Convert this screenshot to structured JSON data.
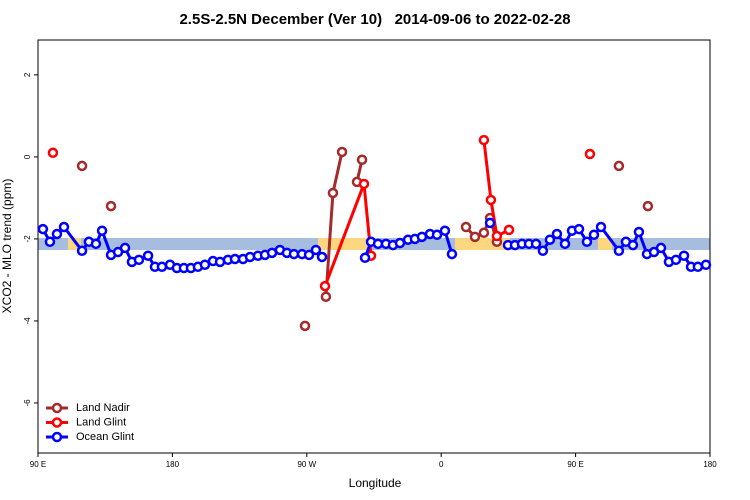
{
  "chart_data": {
    "type": "line",
    "title": "2.5S-2.5N December (Ver 10)   2014-09-06 to 2022-02-28",
    "xlabel": "Longitude",
    "ylabel": "XCO2 - MLO trend (ppm)",
    "xlim": [
      90,
      540
    ],
    "ylim": [
      -7.22,
      2.85
    ],
    "xticks": [
      {
        "value": 90,
        "label": "90 E"
      },
      180,
      {
        "value": 270,
        "label": "90 W"
      },
      {
        "value": 360,
        "label": "0"
      },
      {
        "value": 450,
        "label": "90 E"
      },
      {
        "value": 540,
        "label": "180"
      }
    ],
    "yticks": [
      2,
      0,
      -2,
      -4,
      -6
    ],
    "legend": "bottom-left",
    "series": [
      {
        "name": "Land Nadir",
        "color": "#a52a2a",
        "x": [
          119.5,
          null,
          138.9,
          null,
          268.8,
          null,
          282.8,
          287.5,
          293.6,
          null,
          303.6,
          307.0,
          null,
          376.6,
          382.6,
          388.6,
          392.7,
          397.3,
          null,
          479.0,
          null,
          498.4
        ],
        "values": [
          -0.22,
          null,
          -1.2,
          null,
          -4.12,
          null,
          -3.41,
          -0.88,
          0.12,
          null,
          -0.61,
          -0.07,
          null,
          -1.71,
          -1.95,
          -1.85,
          -1.49,
          -2.07,
          null,
          -0.22,
          null,
          -1.2
        ]
      },
      {
        "name": "Land Glint",
        "color": "#ff0000",
        "x": [
          100.0,
          null,
          282.2,
          308.3,
          313.0,
          null,
          388.6,
          393.3,
          397.3,
          405.4,
          null,
          459.6
        ],
        "values": [
          0.1,
          null,
          -3.15,
          -0.66,
          -2.41,
          null,
          0.41,
          -1.05,
          -1.93,
          -1.78,
          null,
          0.07
        ]
      },
      {
        "name": "Ocean Glint",
        "color": "#0000ff",
        "x": [
          93.3,
          98.0,
          102.7,
          107.4,
          119.5,
          124.1,
          128.8,
          132.9,
          138.9,
          143.6,
          148.3,
          152.9,
          157.6,
          163.7,
          168.3,
          173.0,
          178.4,
          183.0,
          187.7,
          192.4,
          197.1,
          201.8,
          207.2,
          211.9,
          217.2,
          221.9,
          227.3,
          232.0,
          237.3,
          242.0,
          246.7,
          252.0,
          256.7,
          261.4,
          266.8,
          271.5,
          276.1,
          280.2,
          null,
          309.0,
          313.0,
          317.7,
          323.0,
          327.7,
          332.4,
          337.8,
          342.4,
          347.1,
          352.5,
          357.2,
          362.5,
          367.2,
          null,
          392.7,
          null,
          404.7,
          409.4,
          414.1,
          418.8,
          423.5,
          428.1,
          432.8,
          437.5,
          442.9,
          447.6,
          452.3,
          457.6,
          462.3,
          467.0,
          479.0,
          483.7,
          488.4,
          492.4,
          497.8,
          502.5,
          507.2,
          512.5,
          517.2,
          522.6,
          527.3,
          531.9,
          537.3
        ],
        "values": [
          -1.76,
          -2.07,
          -1.88,
          -1.71,
          -2.29,
          -2.07,
          -2.12,
          -1.8,
          -2.39,
          -2.32,
          -2.22,
          -2.56,
          -2.51,
          -2.41,
          -2.68,
          -2.68,
          -2.63,
          -2.71,
          -2.71,
          -2.71,
          -2.68,
          -2.63,
          -2.54,
          -2.56,
          -2.51,
          -2.49,
          -2.49,
          -2.44,
          -2.41,
          -2.39,
          -2.34,
          -2.27,
          -2.34,
          -2.37,
          -2.37,
          -2.39,
          -2.27,
          -2.44,
          null,
          -2.46,
          -2.07,
          -2.12,
          -2.12,
          -2.15,
          -2.1,
          -2.02,
          -2.0,
          -1.95,
          -1.88,
          -1.9,
          -1.8,
          -2.37,
          null,
          -1.61,
          null,
          -2.15,
          -2.15,
          -2.12,
          -2.12,
          -2.12,
          -2.29,
          -2.02,
          -1.88,
          -2.12,
          -1.8,
          -1.76,
          -2.07,
          -1.9,
          -1.71,
          -2.29,
          -2.07,
          -2.15,
          -1.83,
          -2.37,
          -2.32,
          -2.22,
          -2.56,
          -2.51,
          -2.41,
          -2.68,
          -2.68,
          -2.63
        ]
      }
    ]
  }
}
